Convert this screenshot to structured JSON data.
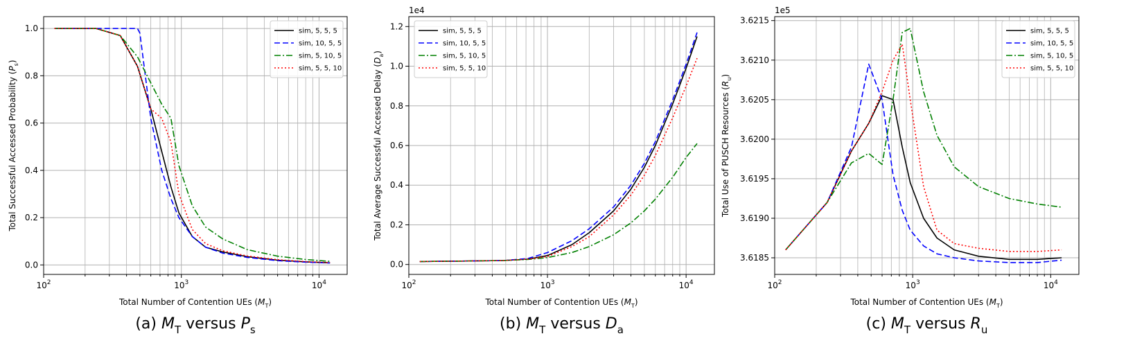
{
  "chart_data": [
    {
      "type": "line",
      "caption": "(a) M_T versus P_s",
      "caption_parts": [
        "(a) ",
        "M",
        "T",
        " versus ",
        "P",
        "s"
      ],
      "xlabel_parts": [
        "Total Number of Contention UEs (",
        "M",
        "T",
        ")"
      ],
      "ylabel_parts": [
        "Total Successful Accessed Probability (",
        "P",
        "s",
        ")"
      ],
      "xscale": "log",
      "xlim": [
        100,
        16000
      ],
      "ylim": [
        -0.04,
        1.05
      ],
      "yticks": [
        "0.0",
        "0.2",
        "0.4",
        "0.6",
        "0.8",
        "1.0"
      ],
      "ytick_values": [
        0,
        0.2,
        0.4,
        0.6,
        0.8,
        1.0
      ],
      "offset_text": "",
      "grid": true,
      "legend_position": "top-right",
      "series": [
        {
          "name": "sim, 5, 5, 5",
          "color": "#000000",
          "dash": "solid",
          "x": [
            120,
            240,
            360,
            480,
            600,
            720,
            840,
            960,
            1200,
            1500,
            2000,
            3000,
            5000,
            8000,
            12000
          ],
          "y": [
            1.0,
            1.0,
            0.97,
            0.84,
            0.66,
            0.48,
            0.33,
            0.22,
            0.12,
            0.075,
            0.055,
            0.035,
            0.02,
            0.013,
            0.009
          ]
        },
        {
          "name": "sim, 10, 5, 5",
          "color": "#0000ff",
          "dash": "dashed",
          "x": [
            120,
            240,
            360,
            480,
            500,
            600,
            720,
            840,
            960,
            1200,
            1500,
            2000,
            3000,
            5000,
            8000,
            12000
          ],
          "y": [
            1.0,
            1.0,
            1.0,
            1.0,
            0.98,
            0.62,
            0.4,
            0.28,
            0.2,
            0.12,
            0.075,
            0.05,
            0.032,
            0.018,
            0.012,
            0.008
          ]
        },
        {
          "name": "sim, 5, 10, 5",
          "color": "#008000",
          "dash": "dashdot",
          "x": [
            120,
            240,
            360,
            480,
            600,
            720,
            840,
            960,
            1200,
            1500,
            2000,
            3000,
            5000,
            8000,
            12000
          ],
          "y": [
            1.0,
            1.0,
            0.97,
            0.88,
            0.77,
            0.68,
            0.62,
            0.42,
            0.25,
            0.16,
            0.11,
            0.065,
            0.037,
            0.023,
            0.015
          ]
        },
        {
          "name": "sim, 5, 5, 10",
          "color": "#ff0000",
          "dash": "dotted",
          "x": [
            120,
            240,
            360,
            480,
            600,
            720,
            840,
            960,
            1200,
            1500,
            2000,
            3000,
            5000,
            8000,
            12000
          ],
          "y": [
            1.0,
            1.0,
            0.97,
            0.84,
            0.66,
            0.62,
            0.52,
            0.3,
            0.15,
            0.09,
            0.06,
            0.038,
            0.022,
            0.014,
            0.01
          ]
        }
      ]
    },
    {
      "type": "line",
      "caption": "(b) M_T versus D_a",
      "caption_parts": [
        "(b) ",
        "M",
        "T",
        " versus ",
        "D",
        "a"
      ],
      "xlabel_parts": [
        "Total Number of Contention UEs (",
        "M",
        "T",
        ")"
      ],
      "ylabel_parts": [
        "Total Average Successful Accessed Delay (",
        "D",
        "a",
        ")"
      ],
      "xscale": "log",
      "xlim": [
        100,
        16000
      ],
      "ylim": [
        -0.05,
        1.25
      ],
      "yticks": [
        "0.0",
        "0.2",
        "0.4",
        "0.6",
        "0.8",
        "1.0",
        "1.2"
      ],
      "ytick_values": [
        0,
        0.2,
        0.4,
        0.6,
        0.8,
        1.0,
        1.2
      ],
      "offset_text": "1e4",
      "grid": true,
      "legend_position": "top-left",
      "series": [
        {
          "name": "sim, 5, 5, 5",
          "color": "#000000",
          "dash": "solid",
          "x": [
            120,
            240,
            480,
            720,
            1000,
            1500,
            2000,
            3000,
            4000,
            5000,
            6000,
            8000,
            10000,
            12000
          ],
          "y": [
            0.015,
            0.017,
            0.02,
            0.027,
            0.045,
            0.1,
            0.16,
            0.27,
            0.38,
            0.49,
            0.6,
            0.81,
            0.99,
            1.15
          ]
        },
        {
          "name": "sim, 10, 5, 5",
          "color": "#0000ff",
          "dash": "dashed",
          "x": [
            120,
            240,
            480,
            720,
            1000,
            1500,
            2000,
            3000,
            4000,
            5000,
            6000,
            8000,
            10000,
            12000
          ],
          "y": [
            0.015,
            0.017,
            0.02,
            0.03,
            0.06,
            0.12,
            0.18,
            0.29,
            0.4,
            0.51,
            0.62,
            0.83,
            1.01,
            1.17
          ]
        },
        {
          "name": "sim, 5, 10, 5",
          "color": "#008000",
          "dash": "dashdot",
          "x": [
            120,
            240,
            480,
            720,
            1000,
            1500,
            2000,
            3000,
            4000,
            5000,
            6000,
            8000,
            10000,
            12000
          ],
          "y": [
            0.015,
            0.017,
            0.02,
            0.025,
            0.035,
            0.06,
            0.09,
            0.15,
            0.21,
            0.27,
            0.33,
            0.44,
            0.54,
            0.61
          ]
        },
        {
          "name": "sim, 5, 5, 10",
          "color": "#ff0000",
          "dash": "dotted",
          "x": [
            120,
            240,
            480,
            720,
            1000,
            1500,
            2000,
            3000,
            4000,
            5000,
            6000,
            8000,
            10000,
            12000
          ],
          "y": [
            0.015,
            0.017,
            0.02,
            0.027,
            0.04,
            0.09,
            0.14,
            0.25,
            0.35,
            0.45,
            0.55,
            0.74,
            0.9,
            1.04
          ]
        }
      ]
    },
    {
      "type": "line",
      "caption": "(c) M_T versus R_u",
      "caption_parts": [
        "(c) ",
        "M",
        "T",
        " versus ",
        "R",
        "u"
      ],
      "xlabel_parts": [
        "Total Number of Contention UEs (",
        "M",
        "T",
        ")"
      ],
      "ylabel_parts": [
        "Total Use of PUSCH Resources (",
        "R",
        "u",
        ")"
      ],
      "xscale": "log",
      "xlim": [
        100,
        16000
      ],
      "ylim": [
        3.61829,
        3.62155
      ],
      "yticks": [
        "3.6185",
        "3.6190",
        "3.6195",
        "3.6200",
        "3.6205",
        "3.6210",
        "3.6215"
      ],
      "ytick_values": [
        3.6185,
        3.619,
        3.6195,
        3.62,
        3.6205,
        3.621,
        3.6215
      ],
      "offset_text": "1e5",
      "grid": true,
      "legend_position": "top-right",
      "series": [
        {
          "name": "sim, 5, 5, 5",
          "color": "#000000",
          "dash": "solid",
          "x": [
            120,
            240,
            360,
            480,
            600,
            720,
            840,
            960,
            1200,
            1500,
            2000,
            3000,
            5000,
            8000,
            12000
          ],
          "y": [
            3.6186,
            3.6192,
            3.61985,
            3.6202,
            3.62055,
            3.6205,
            3.6199,
            3.61945,
            3.619,
            3.61875,
            3.6186,
            3.61852,
            3.61848,
            3.61848,
            3.6185
          ]
        },
        {
          "name": "sim, 10, 5, 5",
          "color": "#0000ff",
          "dash": "dashed",
          "x": [
            120,
            240,
            360,
            480,
            600,
            720,
            840,
            960,
            1200,
            1500,
            2000,
            3000,
            5000,
            8000,
            12000
          ],
          "y": [
            3.6186,
            3.6192,
            3.6199,
            3.62095,
            3.6205,
            3.61955,
            3.6191,
            3.61885,
            3.61865,
            3.61855,
            3.6185,
            3.61846,
            3.61844,
            3.61844,
            3.61847
          ]
        },
        {
          "name": "sim, 5, 10, 5",
          "color": "#008000",
          "dash": "dashdot",
          "x": [
            120,
            240,
            360,
            480,
            600,
            720,
            840,
            960,
            1200,
            1500,
            2000,
            3000,
            5000,
            8000,
            12000
          ],
          "y": [
            3.6186,
            3.6192,
            3.6197,
            3.61982,
            3.61968,
            3.6205,
            3.62135,
            3.6214,
            3.6206,
            3.62005,
            3.61965,
            3.6194,
            3.61925,
            3.61918,
            3.61914
          ]
        },
        {
          "name": "sim, 5, 5, 10",
          "color": "#ff0000",
          "dash": "dotted",
          "x": [
            120,
            240,
            360,
            480,
            600,
            720,
            840,
            960,
            1200,
            1500,
            2000,
            3000,
            5000,
            8000,
            12000
          ],
          "y": [
            3.6186,
            3.6192,
            3.61985,
            3.6202,
            3.6206,
            3.621,
            3.6212,
            3.6205,
            3.6194,
            3.61885,
            3.61868,
            3.61862,
            3.61858,
            3.61858,
            3.6186
          ]
        }
      ]
    }
  ]
}
